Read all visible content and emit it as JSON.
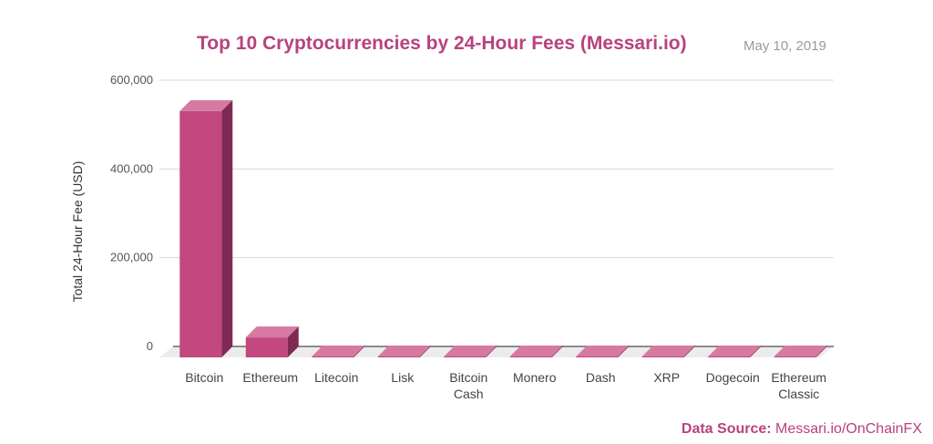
{
  "title": "Top 10 Cryptocurrencies by 24-Hour Fees (Messari.io)",
  "date": "May 10, 2019",
  "source": {
    "label": "Data Source:",
    "value": "Messari.io/OnChainFX"
  },
  "colors": {
    "bar": "#c2487f",
    "bar_top": "#d67aa3",
    "bar_side": "#7f2a55",
    "title": "#b8427f",
    "grid": "#d9d9d9"
  },
  "chart_data": {
    "type": "bar",
    "title": "Top 10 Cryptocurrencies by 24-Hour Fees (Messari.io)",
    "xlabel": "",
    "ylabel": "Total 24-Hour Fee (USD)",
    "ylim": [
      0,
      600000
    ],
    "yticks": [
      0,
      200000,
      400000,
      600000
    ],
    "ytick_labels": [
      "0",
      "200,000",
      "400,000",
      "600,000"
    ],
    "categories": [
      "Bitcoin",
      "Ethereum",
      "Litecoin",
      "Lisk",
      "Bitcoin Cash",
      "Monero",
      "Dash",
      "XRP",
      "Dogecoin",
      "Ethereum Classic"
    ],
    "category_lines": [
      [
        "Bitcoin"
      ],
      [
        "Ethereum"
      ],
      [
        "Litecoin"
      ],
      [
        "Lisk"
      ],
      [
        "Bitcoin",
        "Cash"
      ],
      [
        "Monero"
      ],
      [
        "Dash"
      ],
      [
        "XRP"
      ],
      [
        "Dogecoin"
      ],
      [
        "Ethereum",
        "Classic"
      ]
    ],
    "values": [
      555000,
      45000,
      1200,
      800,
      700,
      600,
      500,
      400,
      300,
      200
    ],
    "grid": true,
    "style": "3d-bar"
  }
}
